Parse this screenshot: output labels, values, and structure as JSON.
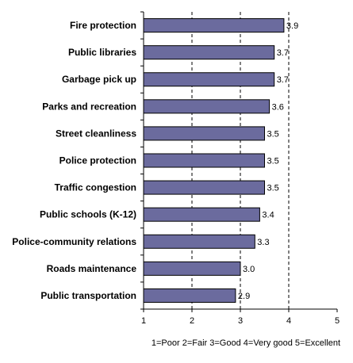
{
  "chart_data": {
    "type": "bar",
    "orientation": "horizontal",
    "categories": [
      "Fire protection",
      "Public libraries",
      "Garbage pick up",
      "Parks and recreation",
      "Street cleanliness",
      "Police protection",
      "Traffic congestion",
      "Public schools (K-12)",
      "Police-community relations",
      "Roads maintenance",
      "Public transportation"
    ],
    "values": [
      3.9,
      3.7,
      3.7,
      3.6,
      3.5,
      3.5,
      3.5,
      3.4,
      3.3,
      3.0,
      2.9
    ],
    "value_labels": [
      "3.9",
      "3.7",
      "3.7",
      "3.6",
      "3.5",
      "3.5",
      "3.5",
      "3.4",
      "3.3",
      "3.0",
      "2.9"
    ],
    "xlim": [
      1,
      5
    ],
    "x_ticks": [
      "1",
      "2",
      "3",
      "4",
      "5"
    ],
    "xlabel": "1=Poor  2=Fair  3=Good  4=Very good  5=Excellent",
    "title": "",
    "ylabel": "",
    "grid": "vertical dashed",
    "legend": "none",
    "colors": {
      "bar": "#6b6b9e",
      "bar_border": "#000000",
      "grid": "#000000"
    }
  }
}
